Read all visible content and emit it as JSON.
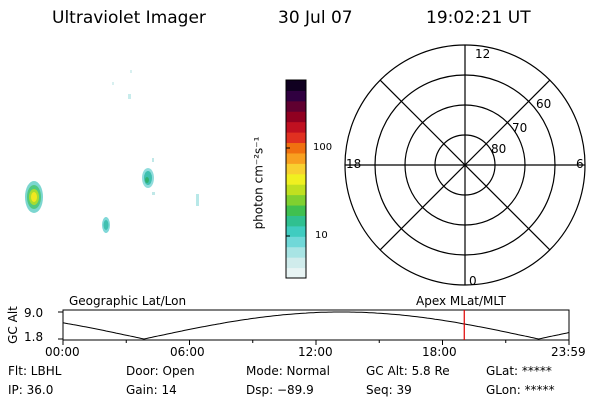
{
  "header": {
    "instrument": "Ultraviolet Imager",
    "date": "30 Jul 07",
    "time": "19:02:21 UT"
  },
  "colorbar": {
    "unit_label": "photon cm⁻²s⁻¹",
    "ticks": [
      "100",
      "10"
    ],
    "colors": [
      "#e8f4f4",
      "#d0ecec",
      "#a8e4e4",
      "#70d8d8",
      "#40ccc0",
      "#30c090",
      "#40c050",
      "#80d030",
      "#c0e020",
      "#f0f020",
      "#f8d030",
      "#f8a020",
      "#f07010",
      "#e03020",
      "#c01020",
      "#900020",
      "#600030",
      "#300040",
      "#100020"
    ]
  },
  "polar": {
    "mlt_labels": {
      "top": "12",
      "left": "18",
      "right": "6",
      "bottom": "0"
    },
    "lat_labels": [
      "60",
      "70",
      "80"
    ]
  },
  "altitude_panel": {
    "y_axis_label": "GC Alt",
    "y_ticks": [
      "9.0",
      "1.8"
    ],
    "left_label": "Geographic Lat/Lon",
    "right_label": "Apex MLat/MLT",
    "x_ticks": [
      "00:00",
      "06:00",
      "12:00",
      "18:00",
      "23:59"
    ],
    "current_time_fraction": 0.793,
    "marker_color": "#e00000"
  },
  "info": {
    "flt": "Flt: LBHL",
    "ip": "IP: 36.0",
    "door": "Door: Open",
    "gain": "Gain: 14",
    "mode": "Mode: Normal",
    "dsp": "Dsp:  −89.9",
    "gcalt": "GC Alt: 5.8 Re",
    "seq": "Seq: 39",
    "glat": "GLat: *****",
    "glon": "GLon: *****"
  }
}
